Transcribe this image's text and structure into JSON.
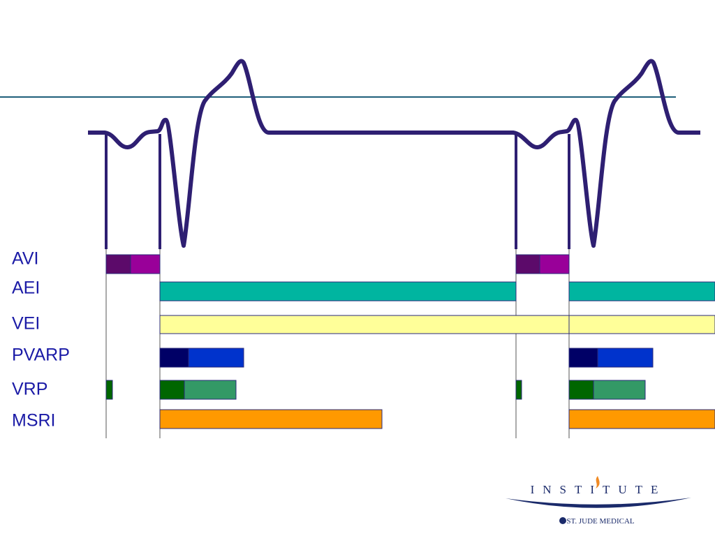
{
  "labels": [
    "AVI",
    "AEI",
    "VEI",
    "PVARP",
    "VRP",
    "MSRI"
  ],
  "logo": {
    "name": "INSTITUTE",
    "company": "ST. JUDE MEDICAL"
  }
}
